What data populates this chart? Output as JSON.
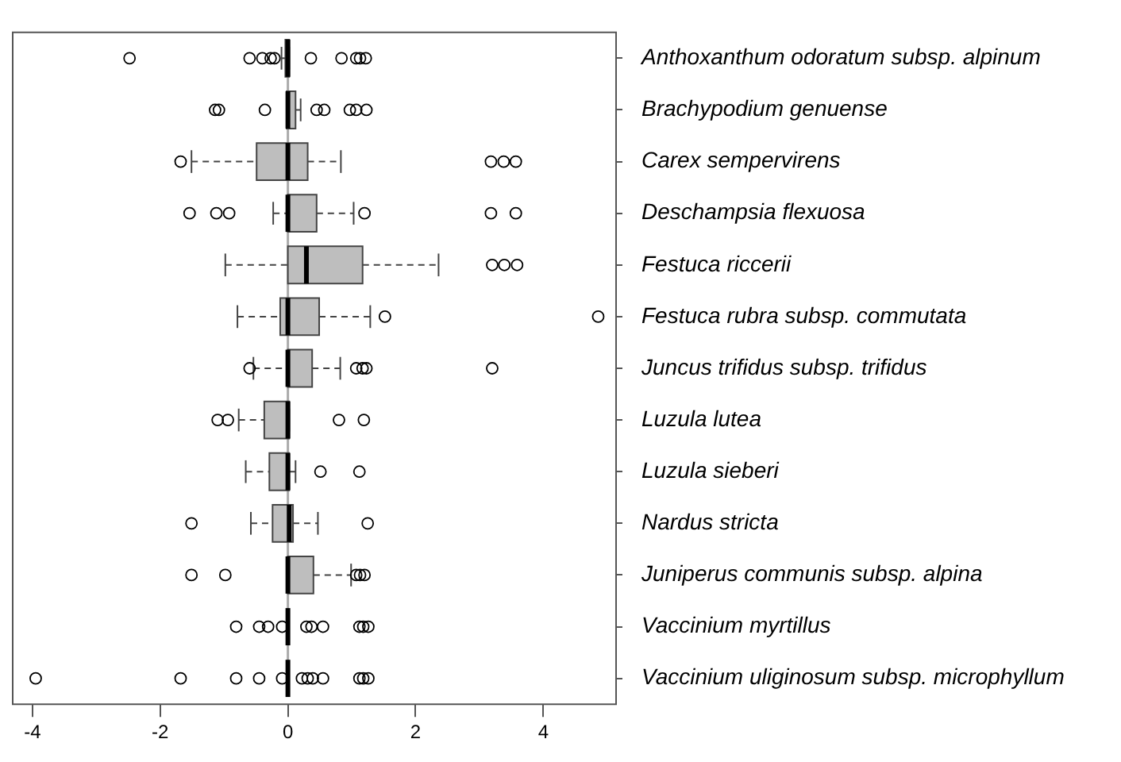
{
  "chart_data": {
    "type": "box",
    "orientation": "horizontal",
    "categories": [
      "Anthoxanthum odoratum subsp. alpinum",
      "Brachypodium genuense",
      "Carex sempervirens",
      "Deschampsia flexuosa",
      "Festuca riccerii",
      "Festuca rubra subsp. commutata",
      "Juncus trifidus subsp. trifidus",
      "Luzula lutea",
      "Luzula sieberi",
      "Nardus stricta",
      "Juniperus communis subsp. alpina",
      "Vaccinium myrtillus",
      "Vaccinium uliginosum subsp. microphyllum"
    ],
    "boxes": [
      {
        "low": -0.1,
        "q1": -0.04,
        "median": 0,
        "q3": 0.02,
        "high": 0.02,
        "outliers": [
          -2.48,
          -0.6,
          -0.4,
          -0.27,
          -0.21,
          0.36,
          0.84,
          1.07,
          1.13,
          1.22
        ]
      },
      {
        "low": -0.02,
        "q1": -0.02,
        "median": 0,
        "q3": 0.12,
        "high": 0.2,
        "outliers": [
          -1.14,
          -1.08,
          -0.36,
          0.45,
          0.57,
          0.97,
          1.07,
          1.23
        ]
      },
      {
        "low": -1.51,
        "q1": -0.49,
        "median": 0,
        "q3": 0.31,
        "high": 0.83,
        "outliers": [
          -1.68,
          3.18,
          3.38,
          3.57
        ]
      },
      {
        "low": -0.23,
        "q1": 0,
        "median": 0,
        "q3": 0.45,
        "high": 1.03,
        "outliers": [
          -1.54,
          -1.12,
          -0.92,
          1.2,
          3.18,
          3.57
        ]
      },
      {
        "low": -0.98,
        "q1": 0,
        "median": 0.29,
        "q3": 1.17,
        "high": 2.36,
        "outliers": [
          3.2,
          3.39,
          3.59
        ]
      },
      {
        "low": -0.79,
        "q1": -0.12,
        "median": 0,
        "q3": 0.49,
        "high": 1.29,
        "outliers": [
          1.52,
          4.86
        ]
      },
      {
        "low": -0.54,
        "q1": 0,
        "median": 0,
        "q3": 0.38,
        "high": 0.82,
        "outliers": [
          -0.6,
          1.07,
          1.17,
          1.23,
          3.2
        ]
      },
      {
        "low": -0.77,
        "q1": -0.37,
        "median": 0,
        "q3": 0.02,
        "high": 0.02,
        "outliers": [
          -1.1,
          -0.94,
          0.8,
          1.19
        ]
      },
      {
        "low": -0.66,
        "q1": -0.29,
        "median": 0,
        "q3": 0.02,
        "high": 0.12,
        "outliers": [
          0.51,
          1.12
        ]
      },
      {
        "low": -0.58,
        "q1": -0.24,
        "median": 0.02,
        "q3": 0.08,
        "high": 0.47,
        "outliers": [
          -1.51,
          1.25
        ]
      },
      {
        "low": 0,
        "q1": 0,
        "median": 0,
        "q3": 0.4,
        "high": 0.99,
        "outliers": [
          -1.51,
          -0.98,
          1.07,
          1.13,
          1.2
        ]
      },
      {
        "low": 0,
        "q1": 0,
        "median": 0,
        "q3": 0,
        "high": 0,
        "outliers": [
          -0.81,
          -0.45,
          -0.31,
          -0.09,
          0.29,
          0.37,
          0.55,
          1.12,
          1.18,
          1.26
        ]
      },
      {
        "low": 0,
        "q1": 0,
        "median": 0,
        "q3": 0,
        "high": 0,
        "outliers": [
          -3.95,
          -1.68,
          -0.81,
          -0.45,
          -0.09,
          0.22,
          0.31,
          0.39,
          0.55,
          1.12,
          1.18,
          1.26
        ]
      }
    ],
    "colors": [
      "#bebebe",
      "#bebebe",
      "#bebebe",
      "#bebebe",
      "#bebebe",
      "#bebebe",
      "#bebebe",
      "#bebebe",
      "#bebebe",
      "#bebebe",
      "#bebebe",
      "#000000",
      "#000000"
    ],
    "marker": "circle",
    "grid": false,
    "legend": false,
    "xlim": [
      -4.31,
      5.14
    ],
    "xticks": [
      -4,
      -2,
      0,
      2,
      4
    ],
    "ref_lines": [
      {
        "axis": "x",
        "value": 0,
        "color": "#aaaaaa"
      }
    ]
  }
}
